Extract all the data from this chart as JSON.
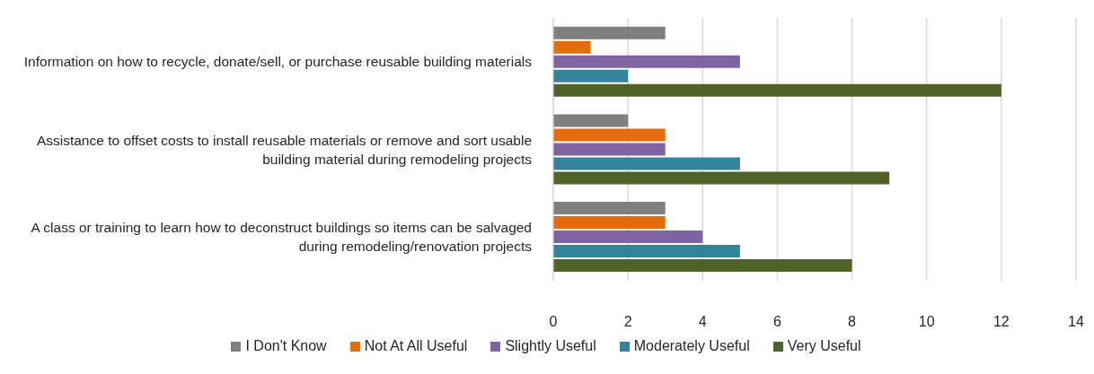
{
  "chart_data": {
    "type": "bar",
    "orientation": "horizontal",
    "categories": [
      "Information on how to recycle, donate/sell, or purchase reusable building materials",
      "Assistance to offset costs to install reusable materials or remove and sort usable building material during remodeling projects",
      "A class or training to learn how to deconstruct buildings so items can be salvaged during remodeling/renovation projects"
    ],
    "series": [
      {
        "name": "I Don't Know",
        "color": "#7f7f7f",
        "values": [
          3,
          2,
          3
        ]
      },
      {
        "name": "Not At All Useful",
        "color": "#e46c0a",
        "values": [
          1,
          3,
          3
        ]
      },
      {
        "name": "Slightly Useful",
        "color": "#8064a2",
        "values": [
          5,
          3,
          4
        ]
      },
      {
        "name": "Moderately Useful",
        "color": "#31849b",
        "values": [
          2,
          5,
          5
        ]
      },
      {
        "name": "Very Useful",
        "color": "#4f6228",
        "values": [
          12,
          9,
          8
        ]
      }
    ],
    "xlim": [
      0,
      14
    ],
    "xticks": [
      0,
      2,
      4,
      6,
      8,
      10,
      12,
      14
    ],
    "grid": "x",
    "legend": "bottom"
  }
}
